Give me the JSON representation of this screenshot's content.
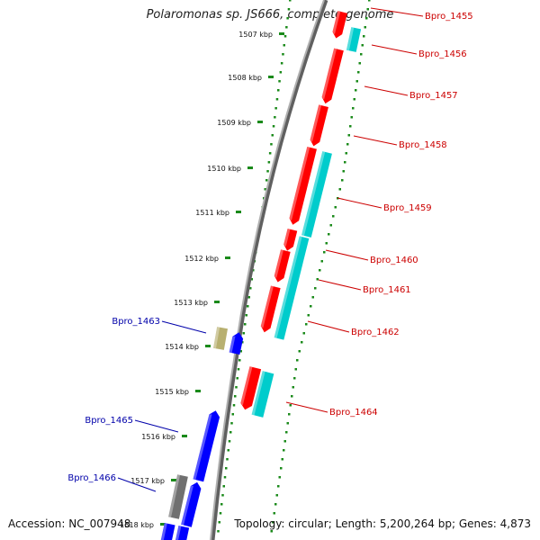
{
  "title": "Polaromonas sp. JS666, complete genome",
  "footer": {
    "accession_label": "Accession:",
    "accession": "NC_007948",
    "topology_label": "Topology:",
    "topology": "circular",
    "length_label": "Length:",
    "length": "5,200,264 bp",
    "genes_label": "Genes:",
    "genes": "4,873"
  },
  "ruler": {
    "ticks": [
      "1507 kbp",
      "1508 kbp",
      "1509 kbp",
      "1510 kbp",
      "1511 kbp",
      "1512 kbp",
      "1513 kbp",
      "1514 kbp",
      "1515 kbp",
      "1516 kbp",
      "1517 kbp",
      "1518 kbp"
    ],
    "major_color": "#1a8a1a",
    "minor_color": "#1a8a1a"
  },
  "colors": {
    "forward_cds": "#ff0000",
    "forward_other": "#00cccc",
    "reverse_cds": "#0000ff",
    "reverse_other_olive": "#b8b070",
    "reverse_other_gray": "#707070",
    "forward_label": "#cc0000",
    "reverse_label": "#0000aa",
    "backbone": "#808080"
  },
  "gene_labels": {
    "forward": [
      "Bpro_1455",
      "Bpro_1456",
      "Bpro_1457",
      "Bpro_1458",
      "Bpro_1459",
      "Bpro_1460",
      "Bpro_1461",
      "Bpro_1462",
      "Bpro_1464"
    ],
    "reverse": [
      "Bpro_1463",
      "Bpro_1465",
      "Bpro_1466"
    ]
  }
}
